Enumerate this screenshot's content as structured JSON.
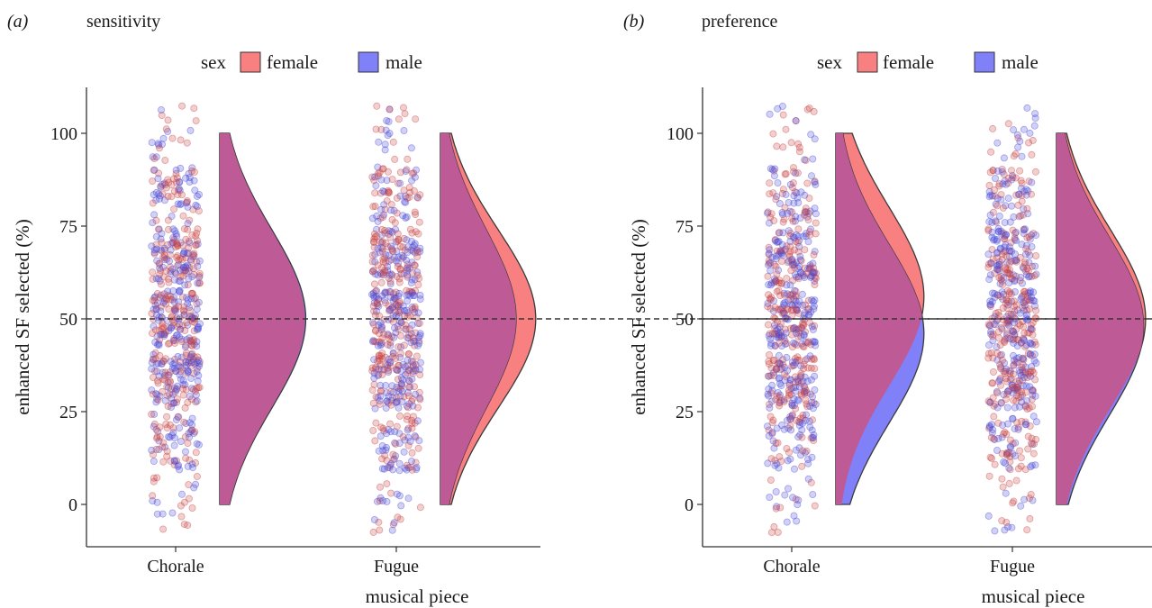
{
  "colors": {
    "female_fill": "#F98080",
    "male_fill": "#8080F8",
    "overlap_fill": "#BE5A96",
    "female_point": "#C84040",
    "male_point": "#4848D8"
  },
  "legend": {
    "title": "sex",
    "items": [
      {
        "label": "female",
        "color": "#F98080"
      },
      {
        "label": "male",
        "color": "#8080F8"
      }
    ]
  },
  "chart_data": [
    {
      "type": "raincloud",
      "panel_label": "(a)",
      "title": "sensitivity",
      "xlabel": "musical piece",
      "ylabel": "enhanced SF selected (%)",
      "categories": [
        "Chorale",
        "Fugue"
      ],
      "ylim": [
        -12,
        112
      ],
      "yticks": [
        0,
        25,
        50,
        75,
        100
      ],
      "reference_line": 50,
      "response_levels": [
        0,
        16.7,
        33.3,
        50,
        66.7,
        83.3,
        100
      ],
      "series": [
        {
          "name": "female",
          "densities": [
            {
              "category": "Chorale",
              "mode": 50,
              "peak_width": 0.82,
              "min": 0,
              "max": 100
            },
            {
              "category": "Fugue",
              "mode": 50,
              "peak_width": 0.92,
              "min": 0,
              "max": 100
            }
          ]
        },
        {
          "name": "male",
          "densities": [
            {
              "category": "Chorale",
              "mode": 50,
              "peak_width": 0.83,
              "min": 0,
              "max": 100
            },
            {
              "category": "Fugue",
              "mode": 50,
              "peak_width": 0.73,
              "min": 0,
              "max": 100
            }
          ]
        }
      ]
    },
    {
      "type": "raincloud",
      "panel_label": "(b)",
      "title": "preference",
      "xlabel": "musical piece",
      "ylabel": "enhanced SF selected (%)",
      "categories": [
        "Chorale",
        "Fugue"
      ],
      "ylim": [
        -12,
        112
      ],
      "yticks": [
        0,
        25,
        50,
        75,
        100
      ],
      "reference_line": 50,
      "response_levels": [
        0,
        16.7,
        33.3,
        50,
        66.7,
        83.3,
        100
      ],
      "series": [
        {
          "name": "female",
          "densities": [
            {
              "category": "Chorale",
              "mode": 56,
              "peak_width": 0.85,
              "min": 0,
              "max": 100
            },
            {
              "category": "Fugue",
              "mode": 50,
              "peak_width": 0.86,
              "min": 0,
              "max": 100
            }
          ]
        },
        {
          "name": "male",
          "densities": [
            {
              "category": "Chorale",
              "mode": 46,
              "peak_width": 0.85,
              "min": 0,
              "max": 100
            },
            {
              "category": "Fugue",
              "mode": 48,
              "peak_width": 0.84,
              "min": 0,
              "max": 100
            }
          ]
        }
      ]
    }
  ]
}
